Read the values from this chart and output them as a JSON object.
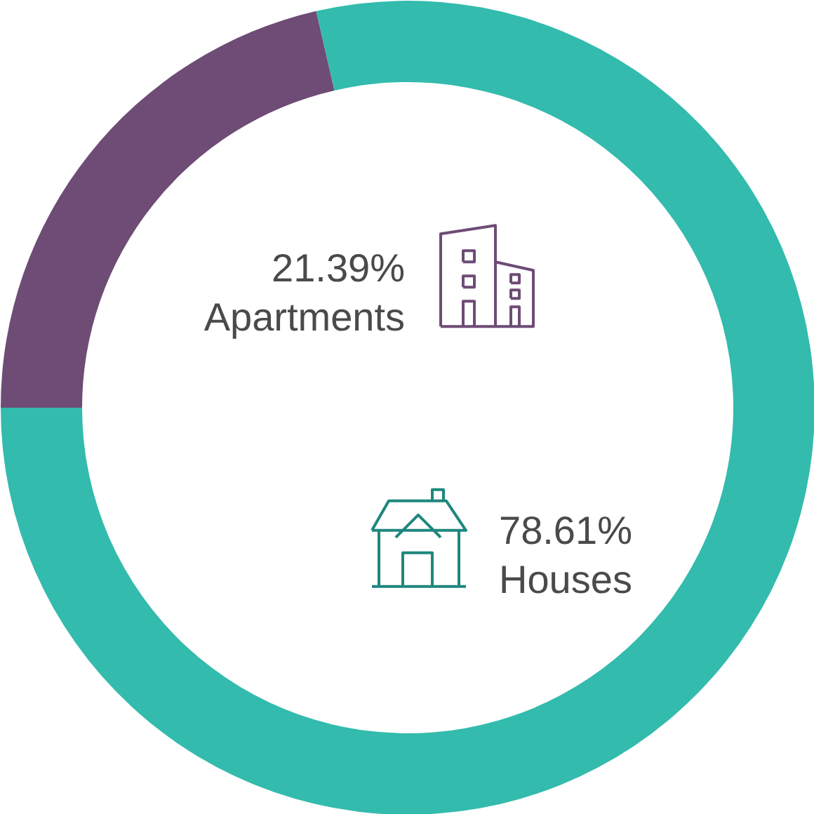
{
  "chart_data": {
    "type": "donut",
    "categories": [
      "Apartments",
      "Houses"
    ],
    "values": [
      21.39,
      78.61
    ],
    "colors": [
      "#6e4c75",
      "#33bbad"
    ],
    "value_labels": [
      "21.39%",
      "78.61%"
    ]
  }
}
